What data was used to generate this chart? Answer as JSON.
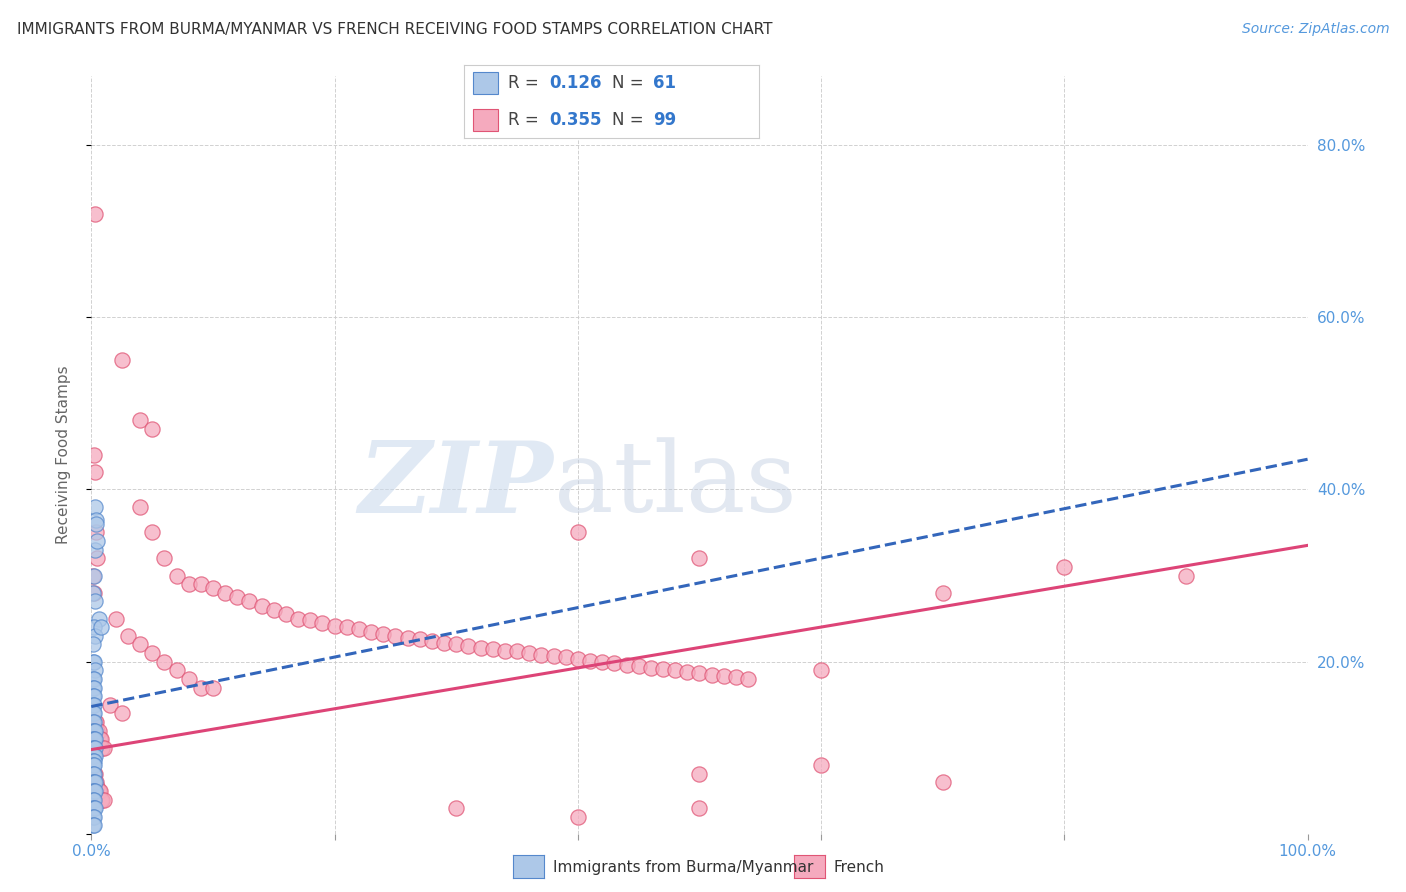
{
  "title": "IMMIGRANTS FROM BURMA/MYANMAR VS FRENCH RECEIVING FOOD STAMPS CORRELATION CHART",
  "source": "Source: ZipAtlas.com",
  "ylabel": "Receiving Food Stamps",
  "blue_color": "#adc8e8",
  "pink_color": "#f5aabe",
  "blue_edge_color": "#5588cc",
  "pink_edge_color": "#e05575",
  "blue_line_color": "#3366bb",
  "pink_line_color": "#dd4477",
  "watermark_zip": "ZIP",
  "watermark_atlas": "atlas",
  "legend_label_blue": "Immigrants from Burma/Myanmar",
  "legend_label_pink": "French",
  "blue_r": "0.126",
  "blue_n": "61",
  "pink_r": "0.355",
  "pink_n": "99",
  "blue_line_x0": 0.0,
  "blue_line_x1": 1.0,
  "blue_line_y0": 0.148,
  "blue_line_y1": 0.435,
  "pink_line_x0": 0.0,
  "pink_line_x1": 1.0,
  "pink_line_y0": 0.098,
  "pink_line_y1": 0.335,
  "blue_scatter": [
    [
      0.003,
      0.38
    ],
    [
      0.004,
      0.365
    ],
    [
      0.003,
      0.33
    ],
    [
      0.002,
      0.3
    ],
    [
      0.001,
      0.28
    ],
    [
      0.003,
      0.27
    ],
    [
      0.004,
      0.36
    ],
    [
      0.005,
      0.34
    ],
    [
      0.006,
      0.25
    ],
    [
      0.002,
      0.24
    ],
    [
      0.003,
      0.23
    ],
    [
      0.001,
      0.22
    ],
    [
      0.001,
      0.2
    ],
    [
      0.002,
      0.2
    ],
    [
      0.003,
      0.19
    ],
    [
      0.001,
      0.18
    ],
    [
      0.002,
      0.18
    ],
    [
      0.001,
      0.17
    ],
    [
      0.002,
      0.17
    ],
    [
      0.001,
      0.16
    ],
    [
      0.002,
      0.16
    ],
    [
      0.001,
      0.15
    ],
    [
      0.002,
      0.15
    ],
    [
      0.001,
      0.14
    ],
    [
      0.002,
      0.14
    ],
    [
      0.001,
      0.13
    ],
    [
      0.002,
      0.13
    ],
    [
      0.001,
      0.12
    ],
    [
      0.002,
      0.12
    ],
    [
      0.003,
      0.12
    ],
    [
      0.001,
      0.11
    ],
    [
      0.002,
      0.11
    ],
    [
      0.003,
      0.11
    ],
    [
      0.001,
      0.1
    ],
    [
      0.002,
      0.1
    ],
    [
      0.003,
      0.1
    ],
    [
      0.001,
      0.09
    ],
    [
      0.002,
      0.09
    ],
    [
      0.003,
      0.09
    ],
    [
      0.001,
      0.085
    ],
    [
      0.002,
      0.085
    ],
    [
      0.001,
      0.08
    ],
    [
      0.002,
      0.08
    ],
    [
      0.001,
      0.07
    ],
    [
      0.002,
      0.07
    ],
    [
      0.001,
      0.06
    ],
    [
      0.002,
      0.06
    ],
    [
      0.003,
      0.06
    ],
    [
      0.001,
      0.05
    ],
    [
      0.002,
      0.05
    ],
    [
      0.003,
      0.05
    ],
    [
      0.001,
      0.04
    ],
    [
      0.002,
      0.04
    ],
    [
      0.001,
      0.03
    ],
    [
      0.002,
      0.03
    ],
    [
      0.003,
      0.03
    ],
    [
      0.001,
      0.02
    ],
    [
      0.002,
      0.02
    ],
    [
      0.001,
      0.01
    ],
    [
      0.002,
      0.01
    ],
    [
      0.008,
      0.24
    ]
  ],
  "pink_scatter": [
    [
      0.003,
      0.72
    ],
    [
      0.025,
      0.55
    ],
    [
      0.003,
      0.42
    ],
    [
      0.002,
      0.44
    ],
    [
      0.04,
      0.48
    ],
    [
      0.04,
      0.38
    ],
    [
      0.05,
      0.35
    ],
    [
      0.06,
      0.32
    ],
    [
      0.07,
      0.3
    ],
    [
      0.08,
      0.29
    ],
    [
      0.09,
      0.29
    ],
    [
      0.1,
      0.285
    ],
    [
      0.11,
      0.28
    ],
    [
      0.12,
      0.275
    ],
    [
      0.13,
      0.27
    ],
    [
      0.14,
      0.265
    ],
    [
      0.15,
      0.26
    ],
    [
      0.16,
      0.255
    ],
    [
      0.17,
      0.25
    ],
    [
      0.18,
      0.248
    ],
    [
      0.19,
      0.245
    ],
    [
      0.2,
      0.242
    ],
    [
      0.21,
      0.24
    ],
    [
      0.22,
      0.238
    ],
    [
      0.23,
      0.235
    ],
    [
      0.24,
      0.232
    ],
    [
      0.25,
      0.23
    ],
    [
      0.26,
      0.228
    ],
    [
      0.27,
      0.226
    ],
    [
      0.28,
      0.224
    ],
    [
      0.29,
      0.222
    ],
    [
      0.3,
      0.22
    ],
    [
      0.31,
      0.218
    ],
    [
      0.32,
      0.216
    ],
    [
      0.33,
      0.215
    ],
    [
      0.34,
      0.213
    ],
    [
      0.35,
      0.212
    ],
    [
      0.36,
      0.21
    ],
    [
      0.37,
      0.208
    ],
    [
      0.38,
      0.207
    ],
    [
      0.39,
      0.205
    ],
    [
      0.4,
      0.203
    ],
    [
      0.41,
      0.201
    ],
    [
      0.42,
      0.2
    ],
    [
      0.43,
      0.198
    ],
    [
      0.44,
      0.196
    ],
    [
      0.45,
      0.195
    ],
    [
      0.46,
      0.193
    ],
    [
      0.47,
      0.191
    ],
    [
      0.48,
      0.19
    ],
    [
      0.49,
      0.188
    ],
    [
      0.5,
      0.187
    ],
    [
      0.51,
      0.185
    ],
    [
      0.52,
      0.183
    ],
    [
      0.53,
      0.182
    ],
    [
      0.54,
      0.18
    ],
    [
      0.001,
      0.13
    ],
    [
      0.002,
      0.13
    ],
    [
      0.003,
      0.13
    ],
    [
      0.004,
      0.13
    ],
    [
      0.005,
      0.12
    ],
    [
      0.006,
      0.12
    ],
    [
      0.007,
      0.11
    ],
    [
      0.008,
      0.11
    ],
    [
      0.009,
      0.1
    ],
    [
      0.01,
      0.1
    ],
    [
      0.6,
      0.19
    ],
    [
      0.7,
      0.28
    ],
    [
      0.8,
      0.31
    ],
    [
      0.9,
      0.3
    ],
    [
      0.002,
      0.07
    ],
    [
      0.003,
      0.07
    ],
    [
      0.004,
      0.06
    ],
    [
      0.005,
      0.055
    ],
    [
      0.006,
      0.05
    ],
    [
      0.007,
      0.05
    ],
    [
      0.008,
      0.04
    ],
    [
      0.009,
      0.04
    ],
    [
      0.01,
      0.04
    ],
    [
      0.5,
      0.07
    ],
    [
      0.6,
      0.08
    ],
    [
      0.7,
      0.06
    ],
    [
      0.3,
      0.03
    ],
    [
      0.4,
      0.02
    ],
    [
      0.5,
      0.03
    ],
    [
      0.001,
      0.3
    ],
    [
      0.002,
      0.28
    ],
    [
      0.4,
      0.35
    ],
    [
      0.5,
      0.32
    ],
    [
      0.004,
      0.35
    ],
    [
      0.005,
      0.32
    ],
    [
      0.05,
      0.47
    ],
    [
      0.02,
      0.25
    ],
    [
      0.03,
      0.23
    ],
    [
      0.04,
      0.22
    ],
    [
      0.05,
      0.21
    ],
    [
      0.06,
      0.2
    ],
    [
      0.07,
      0.19
    ],
    [
      0.08,
      0.18
    ],
    [
      0.09,
      0.17
    ],
    [
      0.1,
      0.17
    ],
    [
      0.015,
      0.15
    ],
    [
      0.025,
      0.14
    ]
  ],
  "xlim": [
    0.0,
    1.0
  ],
  "ylim": [
    0.0,
    0.88
  ],
  "xticks": [
    0.0,
    0.2,
    0.4,
    0.6,
    0.8,
    1.0
  ],
  "xticklabels": [
    "0.0%",
    "",
    "",
    "",
    "",
    "100.0%"
  ],
  "yticks": [
    0.0,
    0.2,
    0.4,
    0.6,
    0.8
  ],
  "yticklabels": [
    "",
    "20.0%",
    "40.0%",
    "60.0%",
    "80.0%"
  ],
  "tick_color": "#5599dd",
  "grid_color": "#cccccc",
  "title_fontsize": 11,
  "source_fontsize": 10,
  "tick_fontsize": 11,
  "ylabel_fontsize": 11
}
